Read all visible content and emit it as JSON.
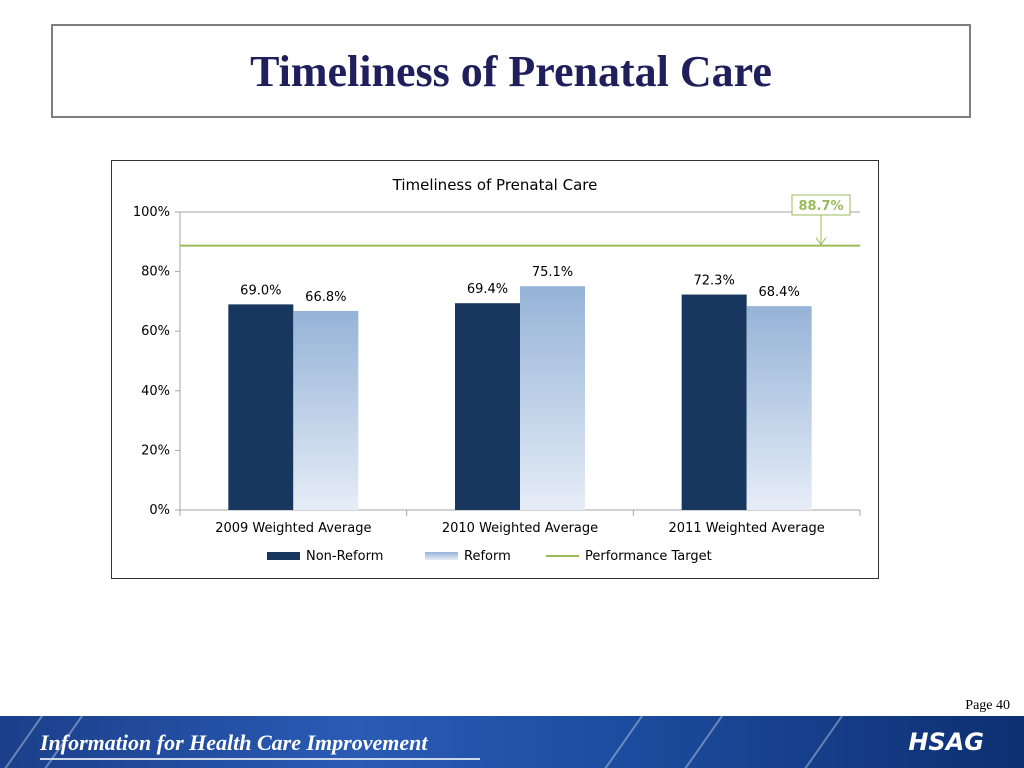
{
  "slide": {
    "title": "Timeliness of Prenatal Care",
    "page_label": "Page 40",
    "footer_tagline": "Information for Health Care Improvement",
    "footer_logo": "HSAG"
  },
  "colors": {
    "title": "#1f1f5c",
    "non_reform": "#17375e",
    "reform_top": "#95b3d7",
    "reform_bottom": "#e6edf7",
    "target": "#9bbb59"
  },
  "chart_data": {
    "type": "bar",
    "title": "Timeliness of Prenatal Care",
    "categories": [
      "2009 Weighted Average",
      "2010 Weighted Average",
      "2011 Weighted Average"
    ],
    "series": [
      {
        "name": "Non-Reform",
        "values": [
          69.0,
          69.4,
          72.3
        ],
        "labels": [
          "69.0%",
          "69.4%",
          "72.3%"
        ]
      },
      {
        "name": "Reform",
        "values": [
          66.8,
          75.1,
          68.4
        ],
        "labels": [
          "66.8%",
          "75.1%",
          "68.4%"
        ]
      }
    ],
    "target": {
      "name": "Performance Target",
      "value": 88.7,
      "label": "88.7%"
    },
    "ylim": [
      0,
      100
    ],
    "yticks": [
      "0%",
      "20%",
      "40%",
      "60%",
      "80%",
      "100%"
    ],
    "ytick_values": [
      0,
      20,
      40,
      60,
      80,
      100
    ],
    "legend": [
      "Non-Reform",
      "Reform",
      "Performance Target"
    ],
    "legend_position": "bottom",
    "grid": "top line only"
  }
}
